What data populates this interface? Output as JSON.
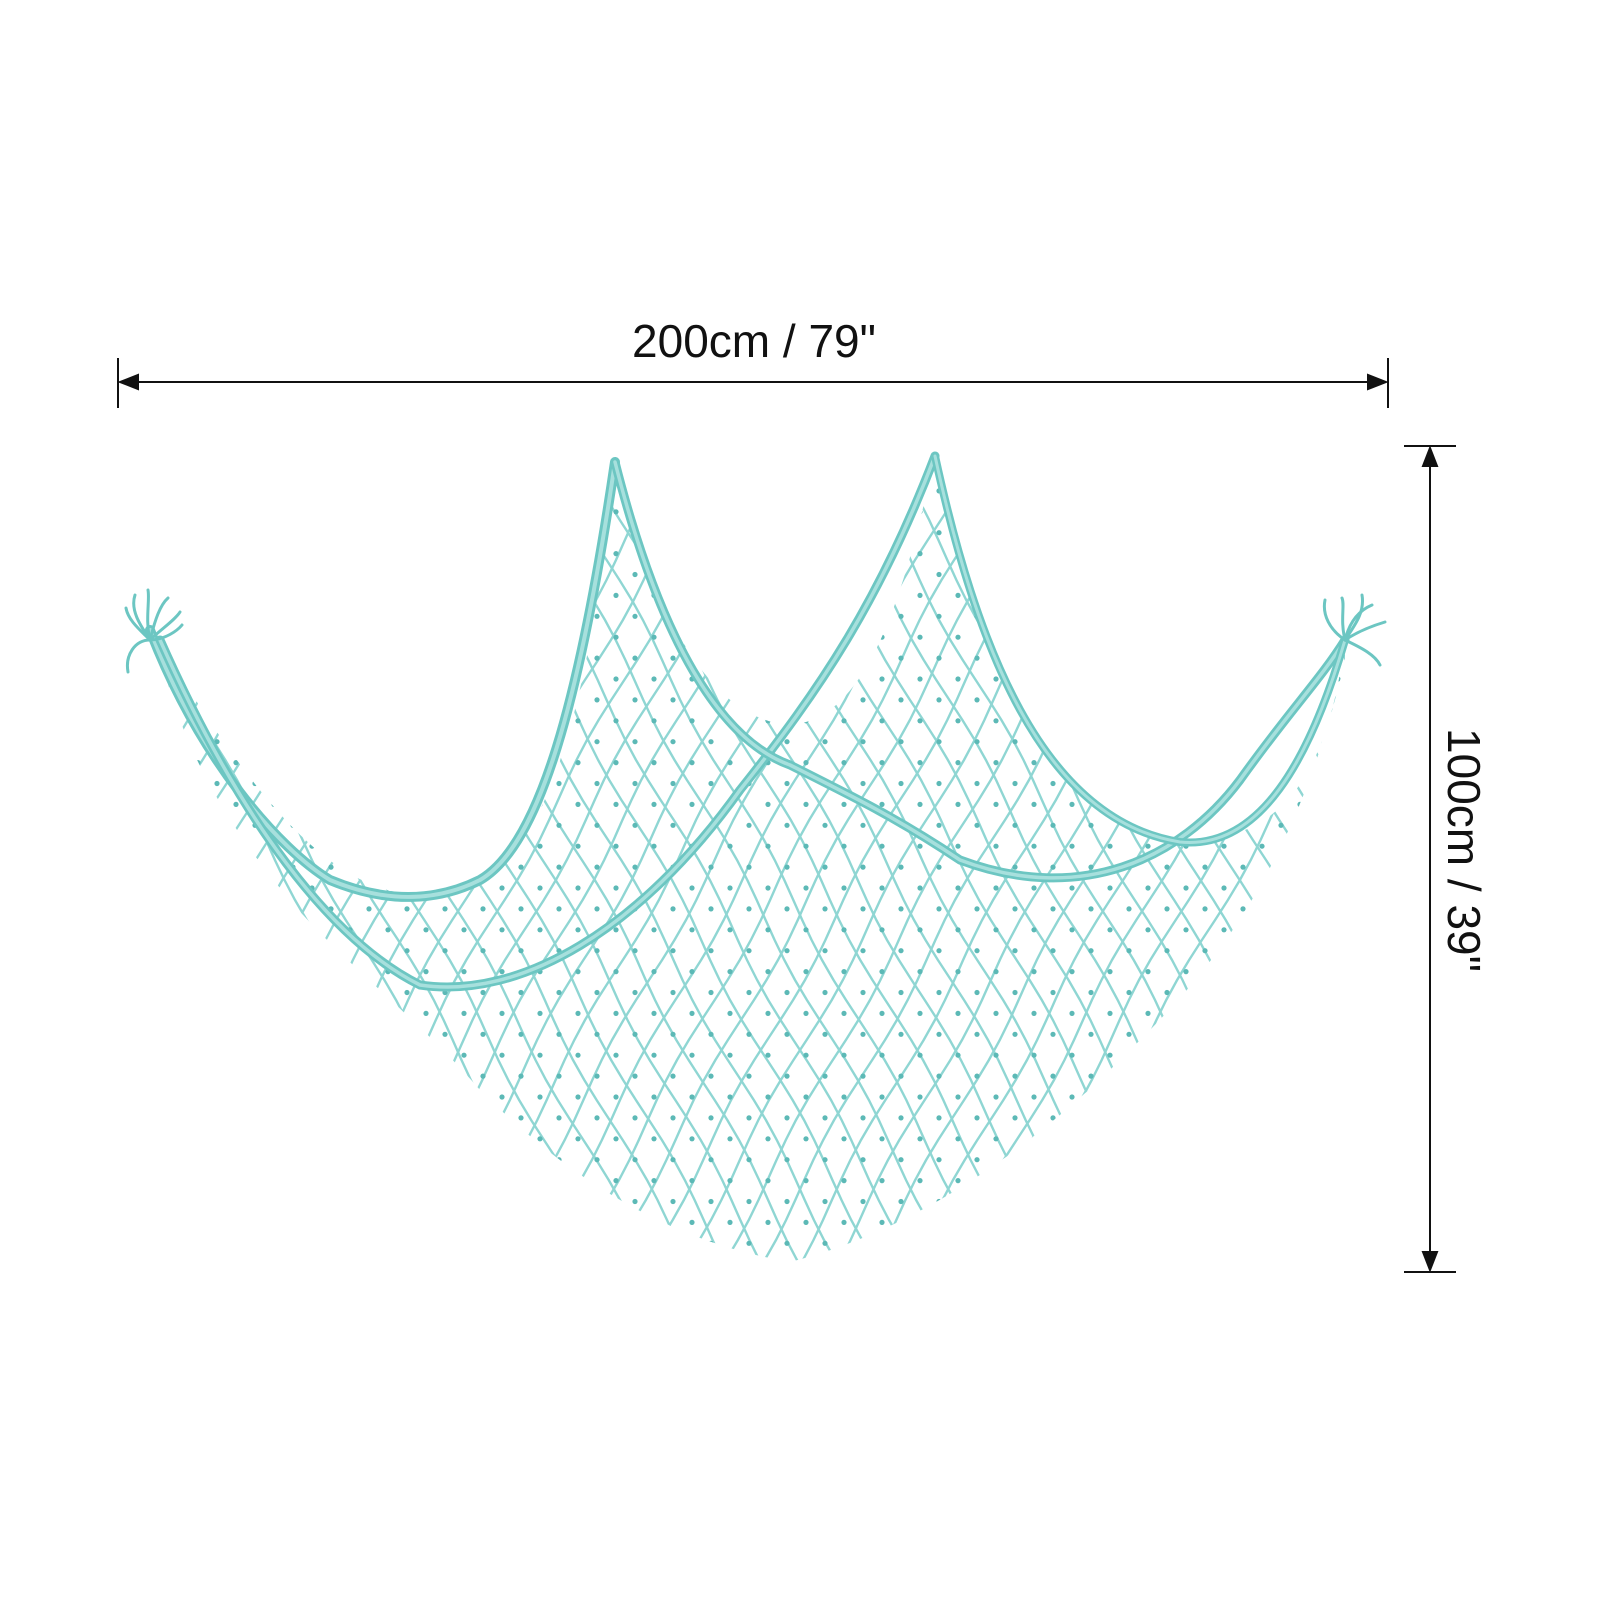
{
  "image": {
    "subject": "fishing-net",
    "background_color": "#ffffff",
    "net_color": "#8fd6d3",
    "net_dark_color": "#5cb9b6",
    "line_color": "#111111"
  },
  "dimensions": {
    "width_label": "200cm / 79\"",
    "height_label": "100cm / 39\""
  }
}
